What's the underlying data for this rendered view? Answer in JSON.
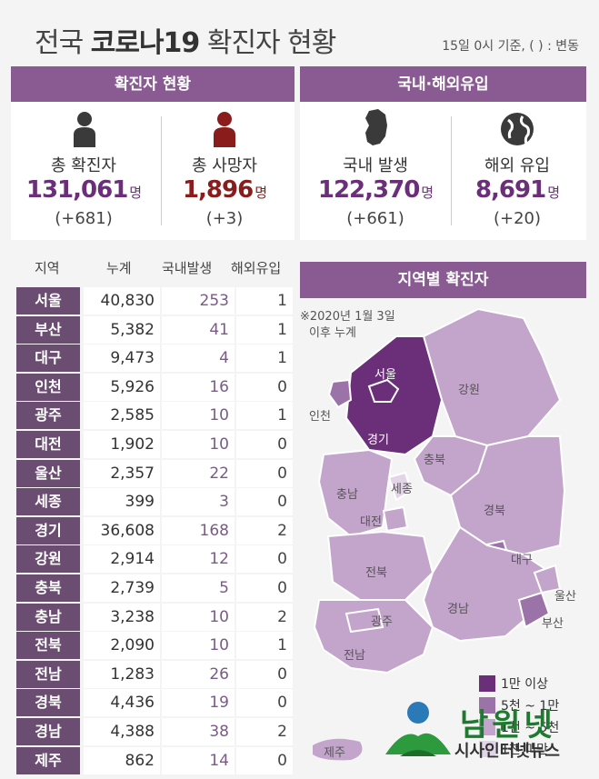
{
  "title_normal": "전국 ",
  "title_bold": "코로나19",
  "title_rest": " 확진자 현황",
  "subtitle": "15일 0시 기준, ( ) : 변동",
  "headers": {
    "status": "확진자 현황",
    "origin": "국내·해외유입",
    "regional": "지역별 확진자"
  },
  "stats": [
    {
      "label": "총 확진자",
      "value": "131,061",
      "unit": "명",
      "change": "(+681)",
      "color": "#6b2f7a",
      "icon": "person-icon"
    },
    {
      "label": "총 사망자",
      "value": "1,896",
      "unit": "명",
      "change": "(+3)",
      "color": "#8a1c1c",
      "icon": "person-icon"
    },
    {
      "label": "국내 발생",
      "value": "122,370",
      "unit": "명",
      "change": "(+661)",
      "color": "#6b2f7a",
      "icon": "korea-map-icon"
    },
    {
      "label": "해외 유입",
      "value": "8,691",
      "unit": "명",
      "change": "(+20)",
      "color": "#6b2f7a",
      "icon": "globe-icon"
    }
  ],
  "table": {
    "columns": [
      "지역",
      "누계",
      "국내발생",
      "해외유입"
    ],
    "rows": [
      {
        "region": "서울",
        "total": "40,830",
        "domestic": "253",
        "overseas": "1"
      },
      {
        "region": "부산",
        "total": "5,382",
        "domestic": "41",
        "overseas": "1"
      },
      {
        "region": "대구",
        "total": "9,473",
        "domestic": "4",
        "overseas": "1"
      },
      {
        "region": "인천",
        "total": "5,926",
        "domestic": "16",
        "overseas": "0"
      },
      {
        "region": "광주",
        "total": "2,585",
        "domestic": "10",
        "overseas": "1"
      },
      {
        "region": "대전",
        "total": "1,902",
        "domestic": "10",
        "overseas": "0"
      },
      {
        "region": "울산",
        "total": "2,357",
        "domestic": "22",
        "overseas": "0"
      },
      {
        "region": "세종",
        "total": "399",
        "domestic": "3",
        "overseas": "0"
      },
      {
        "region": "경기",
        "total": "36,608",
        "domestic": "168",
        "overseas": "2"
      },
      {
        "region": "강원",
        "total": "2,914",
        "domestic": "12",
        "overseas": "0"
      },
      {
        "region": "충북",
        "total": "2,739",
        "domestic": "5",
        "overseas": "0"
      },
      {
        "region": "충남",
        "total": "3,238",
        "domestic": "10",
        "overseas": "2"
      },
      {
        "region": "전북",
        "total": "2,090",
        "domestic": "10",
        "overseas": "1"
      },
      {
        "region": "전남",
        "total": "1,283",
        "domestic": "26",
        "overseas": "0"
      },
      {
        "region": "경북",
        "total": "4,436",
        "domestic": "19",
        "overseas": "0"
      },
      {
        "region": "경남",
        "total": "4,388",
        "domestic": "38",
        "overseas": "2"
      },
      {
        "region": "제주",
        "total": "862",
        "domestic": "14",
        "overseas": "0"
      }
    ]
  },
  "map": {
    "note_line1": "※2020년 1월 3일",
    "note_line2": "이후 누계",
    "labels": {
      "seoul": "서울",
      "incheon": "인천",
      "gyeonggi": "경기",
      "gangwon": "강원",
      "chungbuk": "충북",
      "chungnam": "충남",
      "sejong": "세종",
      "daejeon": "대전",
      "gyeongbuk": "경북",
      "daegu": "대구",
      "jeonbuk": "전북",
      "gwangju": "광주",
      "jeonnam": "전남",
      "gyeongnam": "경남",
      "ulsan": "울산",
      "busan": "부산",
      "jeju": "제주"
    },
    "colors": {
      "over_10000": "#6b2f7a",
      "5000_10000": "#9b73a8",
      "1000_5000": "#c3a5cc",
      "under_1000": "#e3d5e8"
    }
  },
  "legend": [
    {
      "label": "1만 이상",
      "color": "#6b2f7a"
    },
    {
      "label": "5천 ~ 1만",
      "color": "#9b73a8"
    },
    {
      "label": "1천 ~ 5천",
      "color": "#c3a5cc"
    },
    {
      "label": "1천 미만",
      "color": "#e3d5e8"
    }
  ],
  "logo": {
    "name": "남원넷",
    "sub": "시사인터넷뉴스"
  }
}
